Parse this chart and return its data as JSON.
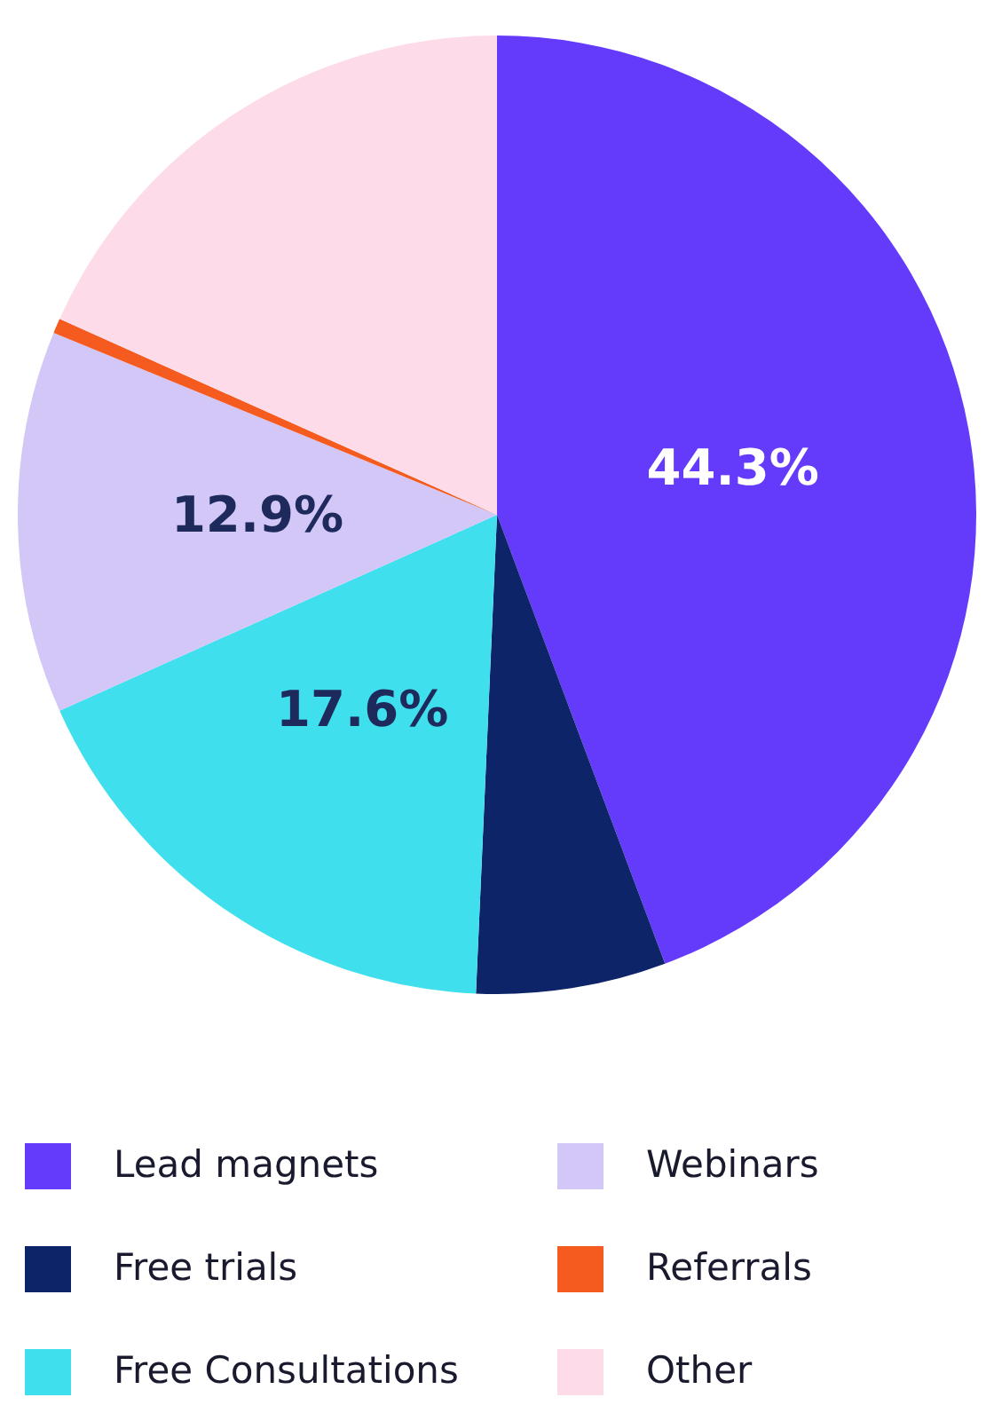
{
  "chart_data": {
    "type": "pie",
    "categories": [
      "Lead magnets",
      "Free trials",
      "Free Consultations",
      "Webinars",
      "Referrals",
      "Other"
    ],
    "values": [
      44.3,
      6.4,
      17.6,
      12.9,
      0.5,
      18.3
    ],
    "colors": [
      "#653bfb",
      "#0d2468",
      "#40dfee",
      "#d2c7f7",
      "#f55a1f",
      "#fddbe8"
    ],
    "value_labels": [
      "44.3%",
      null,
      "17.6%",
      "12.9%",
      null,
      null
    ],
    "legend": "bottom"
  }
}
